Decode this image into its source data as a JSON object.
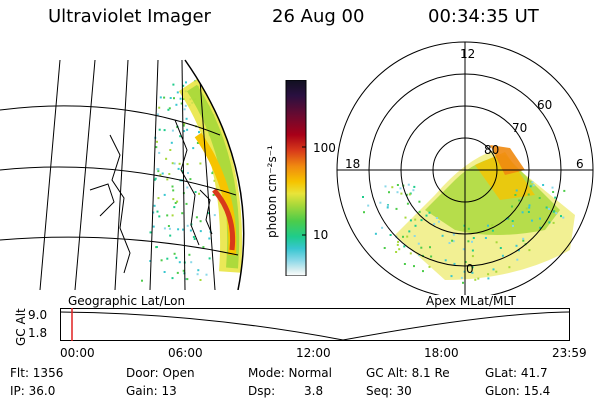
{
  "header": {
    "instrument": "Ultraviolet Imager",
    "date": "26 Aug 00",
    "time": "00:34:35 UT"
  },
  "colorbar": {
    "unit_label": "photon cm⁻²s⁻¹",
    "ticks": [
      "100",
      "10"
    ],
    "colors": [
      "#101020",
      "#2a1040",
      "#6a0a30",
      "#a80018",
      "#d83a1a",
      "#f08a10",
      "#f6c400",
      "#e8e43a",
      "#a6d83a",
      "#4ccc4a",
      "#1ecc8c",
      "#38c6d0",
      "#8ad8e8",
      "#d8eef0",
      "#ffffff"
    ]
  },
  "left_panel": {
    "label": "Geographic Lat/Lon"
  },
  "right_panel": {
    "label": "Apex MLat/MLT",
    "mlt_labels": {
      "top": "12",
      "left": "18",
      "right": "6",
      "bottom": "0"
    },
    "lat_labels": [
      "60",
      "70",
      "80"
    ]
  },
  "timeline": {
    "axis_label": "GC Alt",
    "y_ticks": [
      "9.0",
      "1.8"
    ],
    "x_ticks": [
      "00:00",
      "06:00",
      "12:00",
      "18:00",
      "23:59"
    ],
    "marker_color": "#e02020"
  },
  "info": {
    "flt": "Flt: 1356",
    "ip": "IP: 36.0",
    "door": "Door: Open",
    "gain": "Gain: 13",
    "mode": "Mode: Normal",
    "dsp_label": "Dsp:",
    "dsp_value": "3.8",
    "gc_alt": "GC Alt: 8.1 Re",
    "seq": "Seq: 30",
    "glat": "GLat: 41.7",
    "glon": "GLon: 15.4"
  }
}
